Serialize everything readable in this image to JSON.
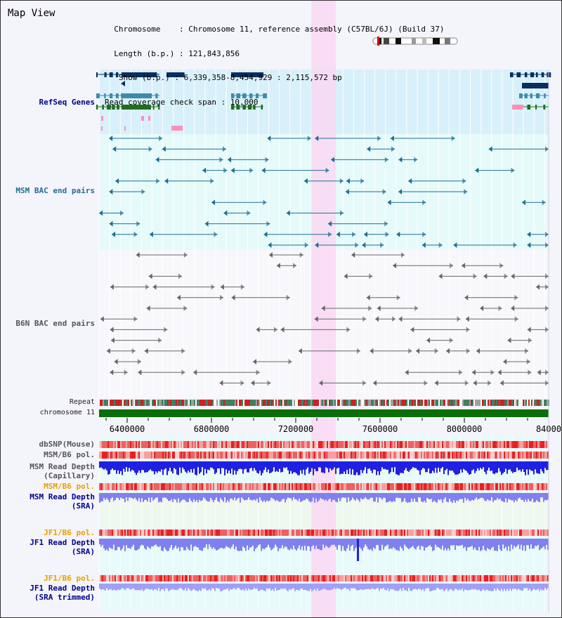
{
  "header": {
    "title": "Map View",
    "info_lines": [
      "  Chromosome    : Chromosome 11, reference assembly (C57BL/6J) (Build 37)",
      "  Length (b.p.) : 121,843,856",
      "   Show (b.p.) : 6,339,358-8,454,929 : 2,115,572 bp",
      "Read coverage check span : 10,000"
    ]
  },
  "tracks": {
    "refseq": "RefSeq Genes",
    "msm_bac": "MSM BAC end pairs",
    "b6n_bac": "B6N BAC end pairs",
    "repeat": "Repeat",
    "chromosome": "chromosome 11",
    "dbsnp": "dbSNP(Mouse)",
    "msm_b6_pol1": "MSM/B6 pol.",
    "msm_read_cap_1": "MSM Read Depth",
    "msm_read_cap_2": "(Capillary)",
    "msm_b6_pol2": "MSM/B6 pol.",
    "msm_read_sra_1": "MSM Read Depth",
    "msm_read_sra_2": "(SRA)",
    "jf1_b6_pol1": "JF1/B6 pol.",
    "jf1_read_sra_1": "JF1 Read Depth",
    "jf1_read_sra_2": "(SRA)",
    "jf1_b6_pol2": "JF1/B6 pol.",
    "jf1_read_trim_1": "JF1 Read Depth",
    "jf1_read_trim_2": "(SRA trimmed)"
  },
  "axis": {
    "ticks": [
      "6400000",
      "6800000",
      "7200000",
      "7600000",
      "8000000",
      "84000"
    ]
  },
  "colors": {
    "refseq_bg": "#d8f0fa",
    "msm_bg": "#e6fafa",
    "highlight": "#f9d8f2",
    "gene_navy": "#0a2e5e",
    "gene_teal": "#3c8ca8",
    "gene_green": "#1e6e1e",
    "msm_feature": "#1f6f8f",
    "b6n_feature": "#666666",
    "chromosome_bar": "#0a6e0a",
    "snp_red": "#e03030",
    "depth_blue": "#2020e0",
    "depth_light": "#8080f0",
    "label_blue": "#00008b",
    "label_orange": "#e8a000"
  }
}
